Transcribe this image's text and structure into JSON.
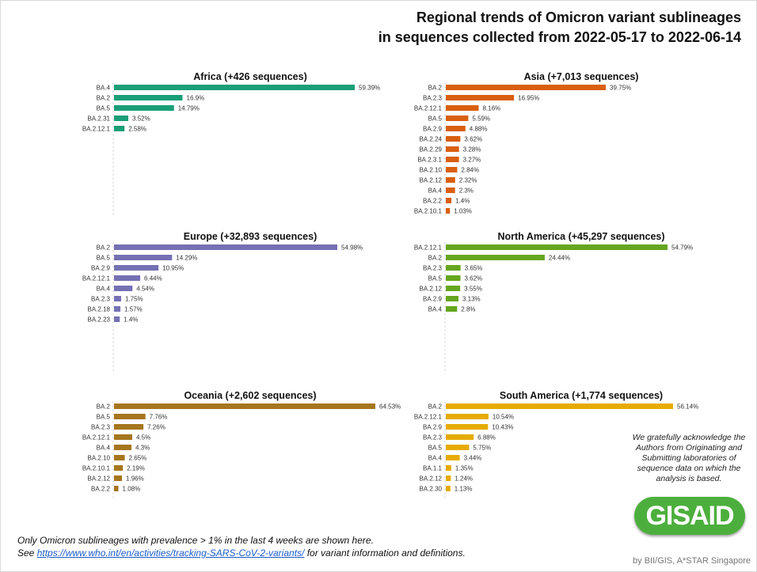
{
  "header": {
    "title_line1": "Regional trends of Omicron variant sublineages",
    "title_line2": "in sequences collected from 2022-05-17 to 2022-06-14"
  },
  "footer": {
    "note_line1": "Only Omicron sublineages with prevalence > 1% in the last 4 weeks are shown here.",
    "note_line2_prefix": "See ",
    "note_link": "https://www.who.int/en/activities/tracking-SARS-CoV-2-variants/",
    "note_line2_suffix": " for variant information and definitions.",
    "acknowledgement": "We gratefully acknowledge the Authors from Originating and Submitting laboratories of sequence data on which the analysis is based.",
    "logo": "GISAID",
    "credit": "by BII/GIS, A*STAR Singapore"
  },
  "chart_data": [
    {
      "type": "bar",
      "orientation": "horizontal",
      "title": "Africa (+426 sequences)",
      "color": "#1a9e78",
      "xlim": [
        0,
        59.39
      ],
      "categories": [
        "BA.4",
        "BA.2",
        "BA.5",
        "BA.2.31",
        "BA.2.12.1"
      ],
      "values": [
        59.39,
        16.9,
        14.79,
        3.52,
        2.58
      ],
      "labels": [
        "59.39%",
        "16.9%",
        "14.79%",
        "3.52%",
        "2.58%"
      ]
    },
    {
      "type": "bar",
      "orientation": "horizontal",
      "title": "Asia (+7,013 sequences)",
      "color": "#d95f0e",
      "xlim": [
        0,
        39.75
      ],
      "categories": [
        "BA.2",
        "BA.2.3",
        "BA.2.12.1",
        "BA.5",
        "BA.2.9",
        "BA.2.24",
        "BA.2.29",
        "BA.2.3.1",
        "BA.2.10",
        "BA.2.12",
        "BA.4",
        "BA.2.2",
        "BA.2.10.1"
      ],
      "values": [
        39.75,
        16.95,
        8.16,
        5.59,
        4.88,
        3.62,
        3.28,
        3.27,
        2.84,
        2.32,
        2.3,
        1.4,
        1.03
      ],
      "labels": [
        "39.75%",
        "16.95%",
        "8.16%",
        "5.59%",
        "4.88%",
        "3.62%",
        "3.28%",
        "3.27%",
        "2.84%",
        "2.32%",
        "2.3%",
        "1.4%",
        "1.03%"
      ]
    },
    {
      "type": "bar",
      "orientation": "horizontal",
      "title": "Europe (+32,893 sequences)",
      "color": "#7570b3",
      "xlim": [
        0,
        54.98
      ],
      "categories": [
        "BA.2",
        "BA.5",
        "BA.2.9",
        "BA.2.12.1",
        "BA.4",
        "BA.2.3",
        "BA.2.18",
        "BA.2.23"
      ],
      "values": [
        54.98,
        14.29,
        10.95,
        6.44,
        4.54,
        1.75,
        1.57,
        1.4
      ],
      "labels": [
        "54.98%",
        "14.29%",
        "10.95%",
        "6.44%",
        "4.54%",
        "1.75%",
        "1.57%",
        "1.4%"
      ]
    },
    {
      "type": "bar",
      "orientation": "horizontal",
      "title": "North America (+45,297 sequences)",
      "color": "#66a61e",
      "xlim": [
        0,
        54.79
      ],
      "categories": [
        "BA.2.12.1",
        "BA.2",
        "BA.2.3",
        "BA.5",
        "BA.2.12",
        "BA.2.9",
        "BA.4"
      ],
      "values": [
        54.79,
        24.44,
        3.65,
        3.62,
        3.55,
        3.13,
        2.8
      ],
      "labels": [
        "54.79%",
        "24.44%",
        "3.65%",
        "3.62%",
        "3.55%",
        "3.13%",
        "2.8%"
      ]
    },
    {
      "type": "bar",
      "orientation": "horizontal",
      "title": "Oceania (+2,602 sequences)",
      "color": "#a6761d",
      "xlim": [
        0,
        64.53
      ],
      "categories": [
        "BA.2",
        "BA.5",
        "BA.2.3",
        "BA.2.12.1",
        "BA.4",
        "BA.2.10",
        "BA.2.10.1",
        "BA.2.12",
        "BA.2.2"
      ],
      "values": [
        64.53,
        7.76,
        7.26,
        4.5,
        4.3,
        2.65,
        2.19,
        1.96,
        1.08
      ],
      "labels": [
        "64.53%",
        "7.76%",
        "7.26%",
        "4.5%",
        "4.3%",
        "2.65%",
        "2.19%",
        "1.96%",
        "1.08%"
      ]
    },
    {
      "type": "bar",
      "orientation": "horizontal",
      "title": "South America (+1,774 sequences)",
      "color": "#e6ab02",
      "xlim": [
        0,
        56.14
      ],
      "categories": [
        "BA.2",
        "BA.2.12.1",
        "BA.2.9",
        "BA.2.3",
        "BA.5",
        "BA.4",
        "BA.1.1",
        "BA.2.12",
        "BA.2.30"
      ],
      "values": [
        56.14,
        10.54,
        10.43,
        6.88,
        5.75,
        3.44,
        1.35,
        1.24,
        1.13
      ],
      "labels": [
        "56.14%",
        "10.54%",
        "10.43%",
        "6.88%",
        "5.75%",
        "3.44%",
        "1.35%",
        "1.24%",
        "1.13%"
      ]
    }
  ]
}
